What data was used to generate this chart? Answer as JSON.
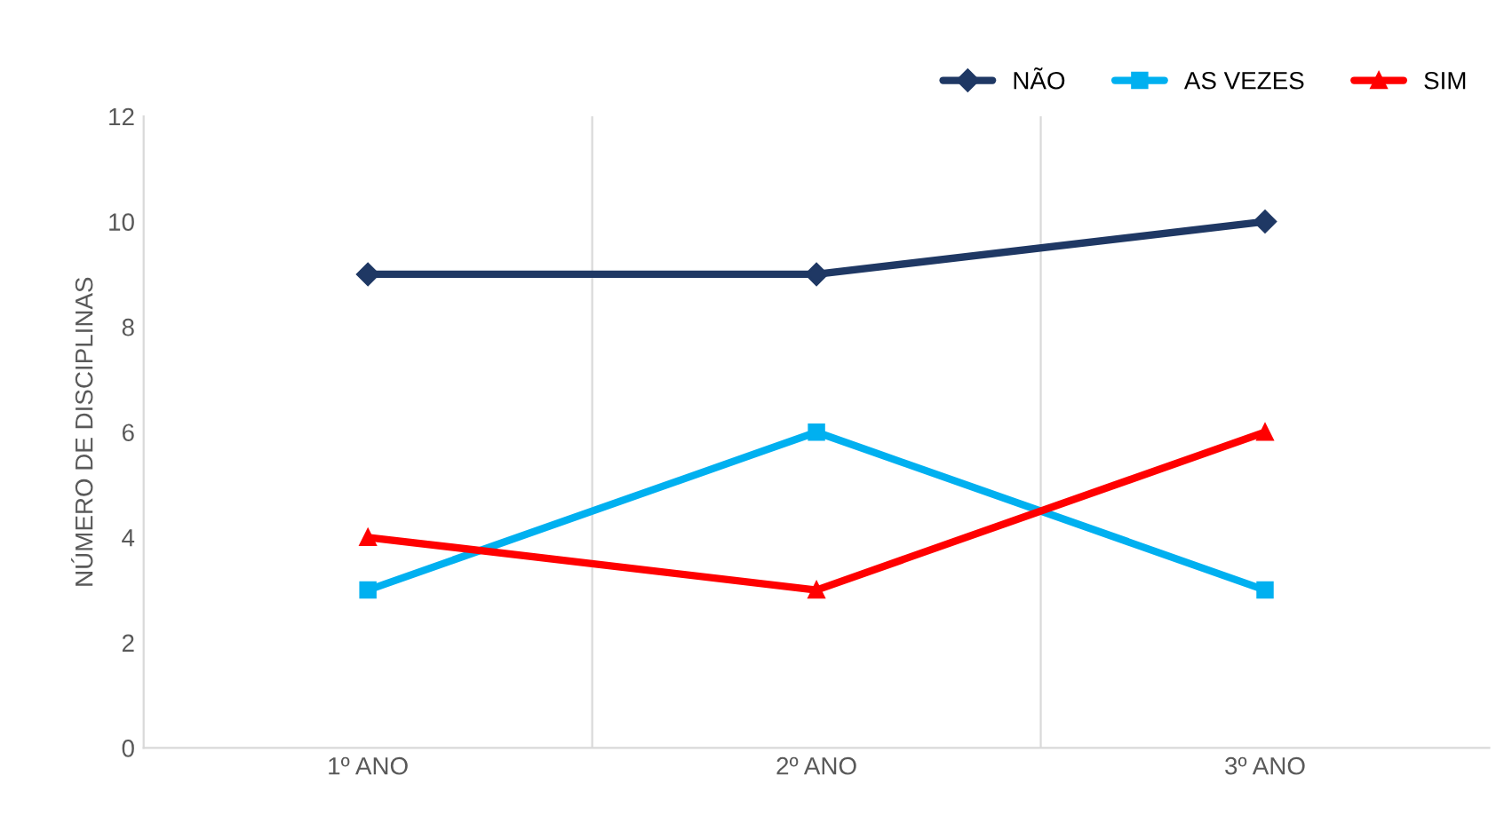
{
  "chart_data": {
    "type": "line",
    "ylabel": "NÚMERO DE DISCIPLINAS",
    "categories": [
      "1º ANO",
      "2º ANO",
      "3º ANO"
    ],
    "series": [
      {
        "name": "NÃO",
        "color": "#1f3864",
        "values": [
          9,
          9,
          10
        ],
        "marker": "diamond"
      },
      {
        "name": "AS VEZES",
        "color": "#00b0f0",
        "values": [
          3,
          6,
          3
        ],
        "marker": "square"
      },
      {
        "name": "SIM",
        "color": "#ff0000",
        "values": [
          4,
          3,
          6
        ],
        "marker": "triangle"
      }
    ],
    "ylim": [
      0,
      12
    ],
    "yticks": [
      0,
      2,
      4,
      6,
      8,
      10,
      12
    ],
    "grid": "x",
    "legend": "top right",
    "line_style": "solid"
  }
}
